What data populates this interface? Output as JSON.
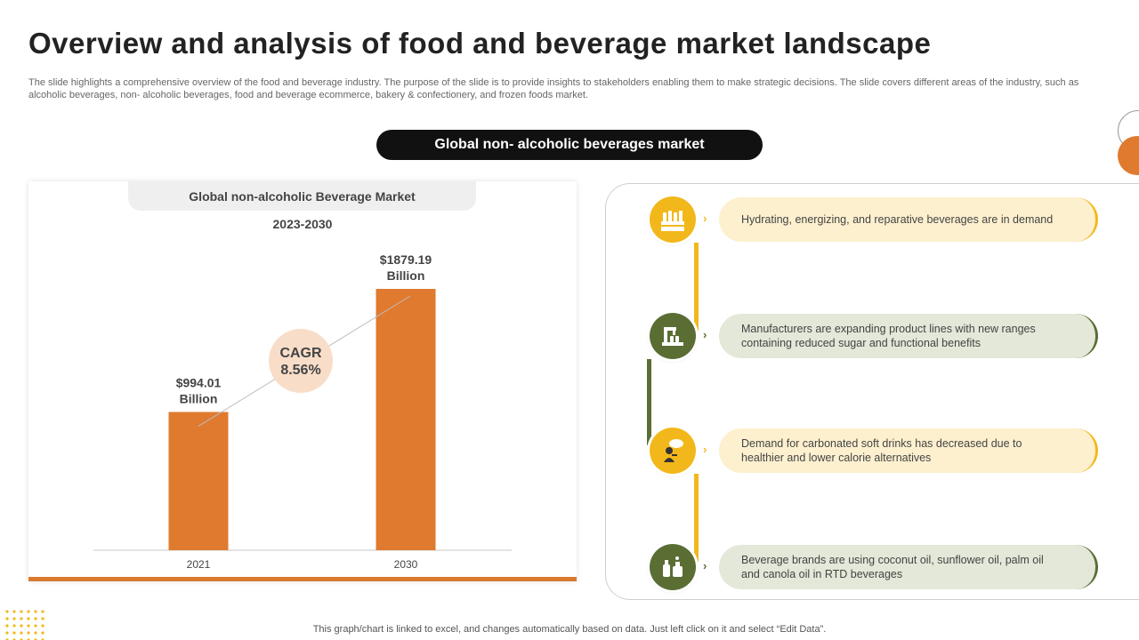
{
  "page": {
    "title": "Overview and analysis of food and beverage market landscape",
    "subtitle": "The slide highlights a comprehensive overview of the food and beverage industry. The purpose of the slide is to provide insights to stakeholders enabling them to make strategic decisions. The slide covers different areas of the industry, such as alcoholic beverages, non- alcoholic beverages, food and beverage ecommerce, bakery & confectionery, and frozen foods market.",
    "section_pill": "Global non- alcoholic beverages market",
    "footer_note": "This graph/chart is linked to excel,  and changes automatically based on data. Just left click on it and select “Edit Data”."
  },
  "chart_data": {
    "type": "bar",
    "title": "Global non-alcoholic Beverage Market",
    "subtitle": "2023-2030",
    "categories": [
      "2021",
      "2030"
    ],
    "values": [
      994.01,
      1879.19
    ],
    "value_labels": [
      [
        "$994.01",
        "Billion"
      ],
      [
        "$1879.19",
        "Billion"
      ]
    ],
    "unit": "Billion USD",
    "ylim": [
      0,
      1879.19
    ],
    "annotation": {
      "line1": "CAGR",
      "line2": "8.56%"
    },
    "bar_color": "#e07a2f",
    "xlabel": "",
    "ylabel": "",
    "grid": false
  },
  "trends": [
    {
      "text": "Hydrating, energizing, and reparative  beverages  are in demand",
      "icon": "beverage-bottles-icon",
      "theme": "yellow"
    },
    {
      "text": "Manufacturers are expanding product lines with new ranges containing reduced sugar and functional benefits",
      "icon": "production-line-icon",
      "theme": "green"
    },
    {
      "text": "Demand for carbonated soft drinks has decreased due to healthier and lower calorie alternatives",
      "icon": "thinking-person-icon",
      "theme": "yellow"
    },
    {
      "text": "Beverage brands are using coconut oil, sunflower oil, palm oil and canola oil in RTD beverages",
      "icon": "oil-bottles-icon",
      "theme": "green"
    }
  ],
  "colors": {
    "accent_orange": "#e07a2f",
    "yellow": "#f2b81b",
    "yellow_light": "#fdf0cf",
    "green": "#5a6e34",
    "green_light": "#e3e8d8"
  }
}
